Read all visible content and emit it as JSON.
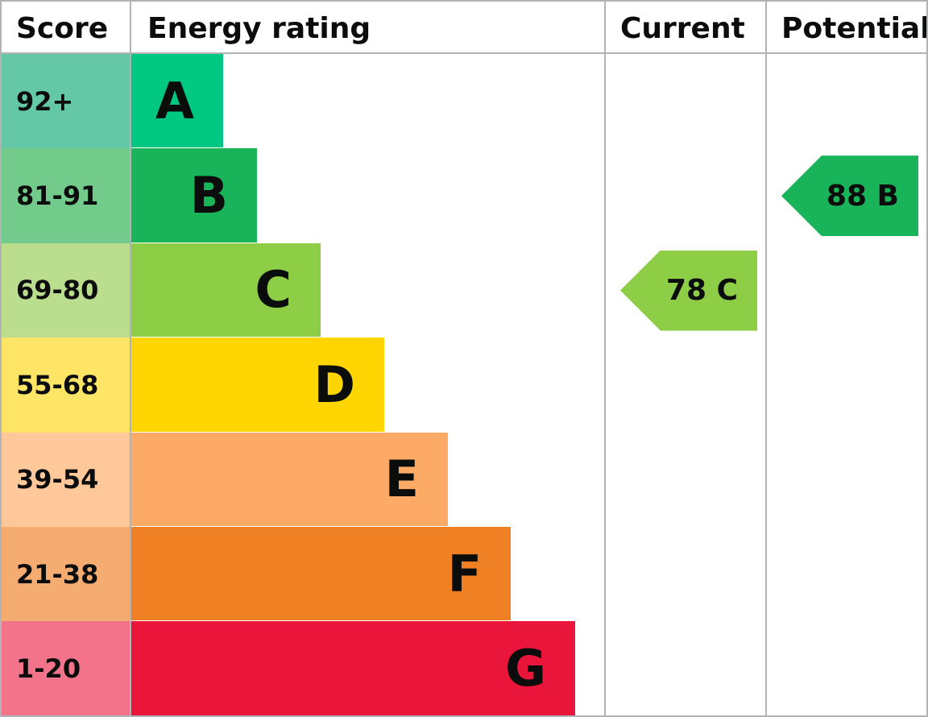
{
  "headers": {
    "score": "Score",
    "rating": "Energy rating",
    "current": "Current",
    "potential": "Potential"
  },
  "chart_data": {
    "type": "bar",
    "categories": [
      "A",
      "B",
      "C",
      "D",
      "E",
      "F",
      "G"
    ],
    "bands": [
      {
        "letter": "A",
        "range": "92+",
        "color": "#00c781",
        "light": "#64c8a6"
      },
      {
        "letter": "B",
        "range": "81-91",
        "color": "#19b459",
        "light": "#72ca8b"
      },
      {
        "letter": "C",
        "range": "69-80",
        "color": "#8dce46",
        "light": "#bbde8e"
      },
      {
        "letter": "D",
        "range": "55-68",
        "color": "#ffd500",
        "light": "#ffe566"
      },
      {
        "letter": "E",
        "range": "39-54",
        "color": "#fcaa65",
        "light": "#fec89b"
      },
      {
        "letter": "F",
        "range": "21-38",
        "color": "#ef8023",
        "light": "#f5ac71"
      },
      {
        "letter": "G",
        "range": "1-20",
        "color": "#e9153b",
        "light": "#f3738a"
      }
    ],
    "current": {
      "score": 78,
      "band": "C",
      "label": "78 C"
    },
    "potential": {
      "score": 88,
      "band": "B",
      "label": "88 B"
    }
  }
}
